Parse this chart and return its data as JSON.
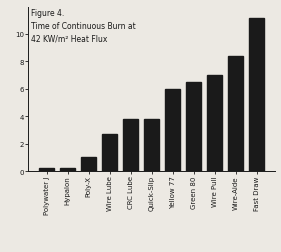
{
  "categories": [
    "Polywater J",
    "Hypalon",
    "Poly-X",
    "Wire Lube",
    "CRC Lube",
    "Quick-Slip",
    "Yellow 77",
    "Green 80",
    "Wire Pull",
    "Wire-Aide",
    "Fast Draw"
  ],
  "values": [
    0.2,
    0.2,
    1.0,
    2.7,
    3.8,
    3.8,
    6.0,
    6.5,
    7.0,
    8.4,
    11.2
  ],
  "bar_color": "#1a1a1a",
  "background_color": "#ece9e3",
  "ylim": [
    0,
    12
  ],
  "yticks": [
    0,
    2,
    4,
    6,
    8,
    10
  ],
  "title_line1": "Figure 4.",
  "title_line2": "Time of Continuous Burn at",
  "title_line3": "42 KW/m² Heat Flux",
  "title_fontsize": 5.5,
  "tick_fontsize": 5.0,
  "bar_width": 0.7
}
